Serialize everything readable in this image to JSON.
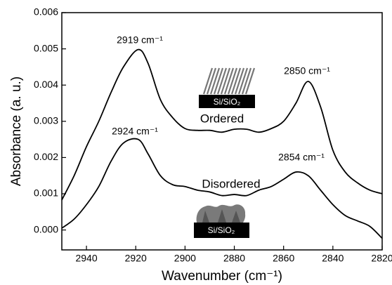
{
  "chart_data": {
    "type": "line",
    "x_label": "Wavenumber  (cm⁻¹)",
    "y_label": "Absorbance (a. u.)",
    "x": [
      2950,
      2945,
      2940,
      2935,
      2930,
      2925,
      2919,
      2915,
      2910,
      2905,
      2900,
      2895,
      2890,
      2885,
      2880,
      2875,
      2870,
      2865,
      2860,
      2855,
      2850,
      2845,
      2840,
      2835,
      2830,
      2825,
      2820
    ],
    "series": [
      {
        "name": "Ordered",
        "color": "#000000",
        "values": [
          0.00083,
          0.0015,
          0.0023,
          0.003,
          0.0038,
          0.0045,
          0.00498,
          0.0046,
          0.0036,
          0.0031,
          0.0028,
          0.00275,
          0.00275,
          0.0027,
          0.00278,
          0.00278,
          0.0027,
          0.0028,
          0.003,
          0.0035,
          0.0041,
          0.0034,
          0.0022,
          0.0016,
          0.0013,
          0.0011,
          0.001
        ]
      },
      {
        "name": "Disordered",
        "color": "#000000",
        "values": [
          5e-05,
          0.0003,
          0.0007,
          0.0012,
          0.0019,
          0.0024,
          0.0025,
          0.0021,
          0.0015,
          0.00125,
          0.0012,
          0.0011,
          0.00105,
          0.00095,
          0.00098,
          0.00095,
          0.0011,
          0.0012,
          0.0014,
          0.0016,
          0.0015,
          0.0011,
          0.0007,
          0.0004,
          0.00025,
          0.0001,
          -0.00023
        ]
      }
    ],
    "xlim": [
      2950,
      2820
    ],
    "xticks": [
      2940,
      2920,
      2900,
      2880,
      2860,
      2840,
      2820
    ],
    "ylim": [
      -0.00055,
      0.006
    ],
    "yticks": [
      {
        "value": 0,
        "label": "0.000"
      },
      {
        "value": 0.001,
        "label": "0.001"
      },
      {
        "value": 0.002,
        "label": "0.002"
      },
      {
        "value": 0.003,
        "label": "0.003"
      },
      {
        "value": 0.004,
        "label": "0.004"
      },
      {
        "value": 0.005,
        "label": "0.005"
      },
      {
        "value": 0.006,
        "label": "0.006"
      }
    ],
    "annotations": [
      "2919 cm⁻¹",
      "2850 cm⁻¹",
      "2924 cm⁻¹",
      "2854 cm⁻¹",
      "Ordered",
      "Disordered",
      "Si/SiO₂",
      "Si/SiO₂"
    ]
  }
}
